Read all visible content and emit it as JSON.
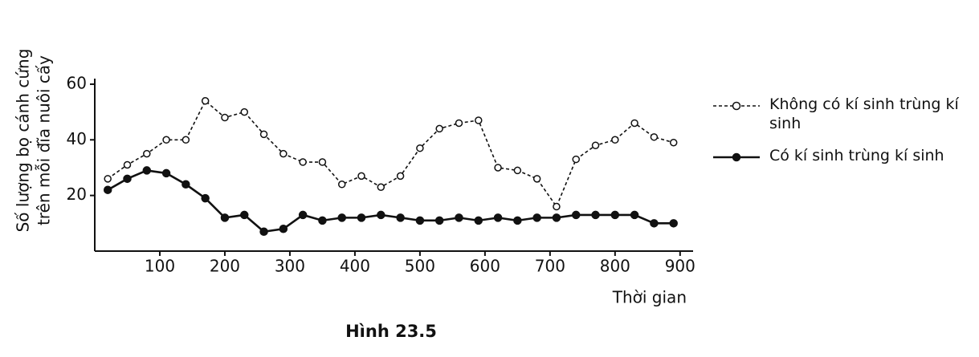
{
  "chart_data": {
    "type": "line",
    "caption": "Hình 23.5",
    "xlabel": "Thời gian",
    "ylabel": [
      "Số lượng bọ cánh cứng",
      "trên mỗi đĩa nuôi cấy"
    ],
    "x": [
      20,
      50,
      80,
      110,
      140,
      170,
      200,
      230,
      260,
      290,
      320,
      350,
      380,
      410,
      440,
      470,
      500,
      530,
      560,
      590,
      620,
      650,
      680,
      710,
      740,
      770,
      800,
      830,
      860,
      890
    ],
    "series": [
      {
        "name": "Không có kí sinh trùng kí sinh",
        "color": "#111111",
        "dashed": true,
        "marker": "open",
        "values": [
          26,
          31,
          35,
          40,
          40,
          54,
          48,
          50,
          42,
          35,
          32,
          32,
          24,
          27,
          23,
          27,
          37,
          44,
          46,
          47,
          30,
          29,
          26,
          16,
          33,
          38,
          40,
          46,
          41,
          39
        ]
      },
      {
        "name": "Có kí sinh trùng kí sinh",
        "color": "#111111",
        "dashed": false,
        "marker": "filled",
        "values": [
          22,
          26,
          29,
          28,
          24,
          19,
          12,
          13,
          7,
          8,
          13,
          11,
          12,
          12,
          13,
          12,
          11,
          11,
          12,
          11,
          12,
          11,
          12,
          12,
          13,
          13,
          13,
          13,
          10,
          10
        ]
      }
    ],
    "xlim": [
      0,
      920
    ],
    "ylim": [
      0,
      62
    ],
    "xticks": [
      100,
      200,
      300,
      400,
      500,
      600,
      700,
      800,
      900
    ],
    "yticks": [
      20,
      40,
      60
    ],
    "grid": false
  }
}
